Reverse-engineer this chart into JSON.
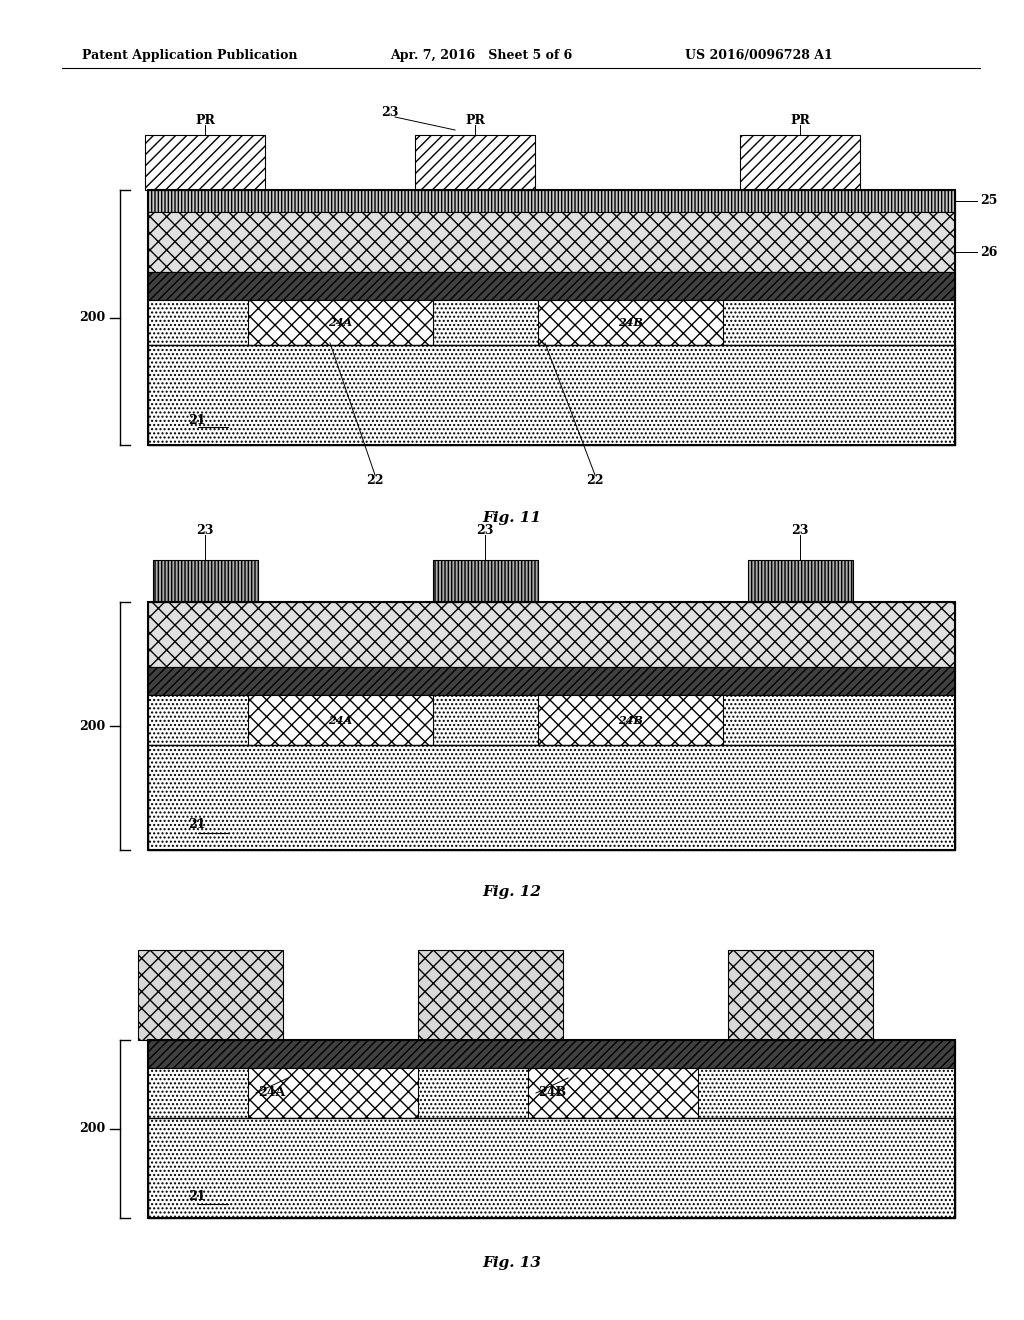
{
  "title_left": "Patent Application Publication",
  "title_mid": "Apr. 7, 2016   Sheet 5 of 6",
  "title_right": "US 2016/0096728 A1",
  "fig11_label": "Fig. 11",
  "fig12_label": "Fig. 12",
  "fig13_label": "Fig. 13",
  "bg_color": "#ffffff"
}
